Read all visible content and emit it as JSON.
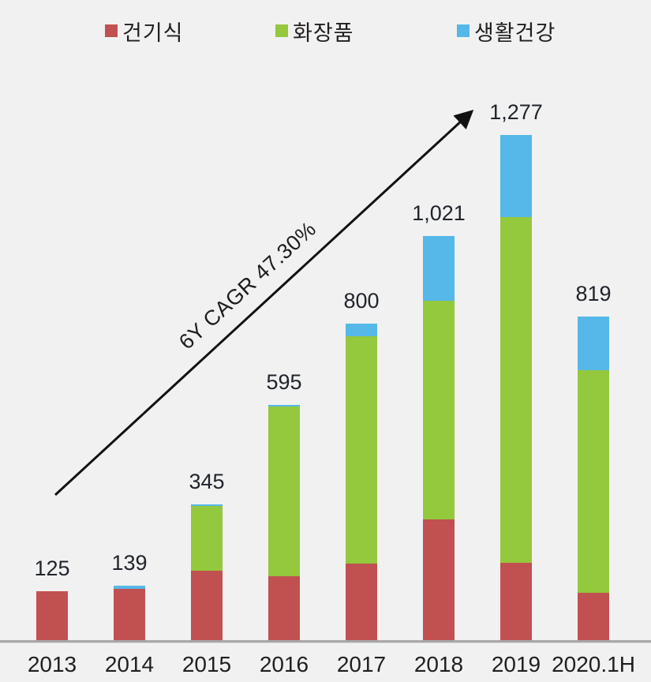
{
  "page": {
    "background_color": "#f1f1f1",
    "axis_line_color": "#a8a8a8"
  },
  "legend": {
    "items": [
      {
        "label": "건기식",
        "color": "#c05150",
        "swatch": "red-square"
      },
      {
        "label": "화장품",
        "color": "#94c83d",
        "swatch": "green-square"
      },
      {
        "label": "생활건강",
        "color": "#55b8e8",
        "swatch": "blue-square"
      }
    ]
  },
  "annotation": {
    "text": "6Y CAGR 47.30%"
  },
  "chart_data": {
    "type": "bar",
    "subtype": "stacked",
    "title": "",
    "xlabel": "",
    "ylabel": "",
    "legend_position": "top",
    "grid": false,
    "categories": [
      "2013",
      "2014",
      "2015",
      "2016",
      "2017",
      "2018",
      "2019",
      "2020.1H"
    ],
    "series": [
      {
        "name": "건기식",
        "color": "#c05150",
        "values": [
          125,
          132,
          177,
          164,
          195,
          307,
          197,
          121
        ]
      },
      {
        "name": "화장품",
        "color": "#94c83d",
        "values": [
          0,
          0,
          163,
          427,
          573,
          552,
          872,
          563
        ]
      },
      {
        "name": "생활건강",
        "color": "#55b8e8",
        "values": [
          0,
          7,
          5,
          4,
          32,
          162,
          208,
          135
        ]
      }
    ],
    "totals": [
      125,
      139,
      345,
      595,
      800,
      1021,
      1277,
      819
    ],
    "totals_display": [
      "125",
      "139",
      "345",
      "595",
      "800",
      "1,021",
      "1,277",
      "819"
    ],
    "annotation_text": "6Y CAGR 47.30%",
    "ylim": [
      0,
      1400
    ]
  }
}
